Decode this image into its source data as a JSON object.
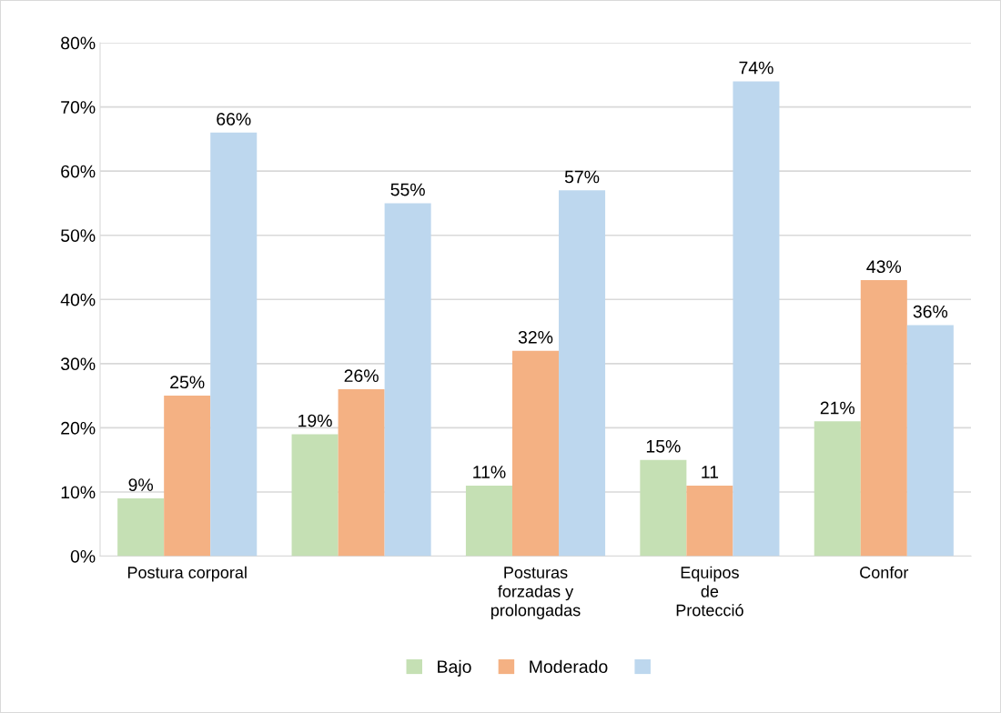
{
  "chart_data": {
    "type": "bar",
    "categories": [
      "Postura corporal",
      null,
      "Posturas\nforzadas y\nprolongadas",
      "Equipos\nde\nProtecció",
      "Confor"
    ],
    "series": [
      {
        "name": "Bajo",
        "color": "#c5e0b4",
        "values": [
          9,
          19,
          11,
          15,
          21
        ],
        "value_labels": [
          "9%",
          "19%",
          "11%",
          "15%",
          "21%"
        ]
      },
      {
        "name": "Moderado",
        "color": "#f4b183",
        "values": [
          25,
          26,
          32,
          11,
          43
        ],
        "value_labels": [
          "25%",
          "26%",
          "32%",
          "11",
          "43%"
        ]
      },
      {
        "color": "#bdd7ee",
        "values": [
          66,
          55,
          57,
          74,
          36
        ],
        "value_labels": [
          "66%",
          "55%",
          "57%",
          "74%",
          "36%"
        ]
      }
    ],
    "ylim": [
      0,
      80
    ],
    "yticks": [
      {
        "value": 0,
        "label": "0%"
      },
      {
        "value": 10,
        "label": "10%"
      },
      {
        "value": 20,
        "label": "20%"
      },
      {
        "value": 30,
        "label": "30%"
      },
      {
        "value": 40,
        "label": "40%"
      },
      {
        "value": 50,
        "label": "50%"
      },
      {
        "value": 60,
        "label": "60%"
      },
      {
        "value": 70,
        "label": "70%"
      },
      {
        "value": 80,
        "label": "80%"
      }
    ],
    "grid": "y",
    "legend": "bottom"
  }
}
